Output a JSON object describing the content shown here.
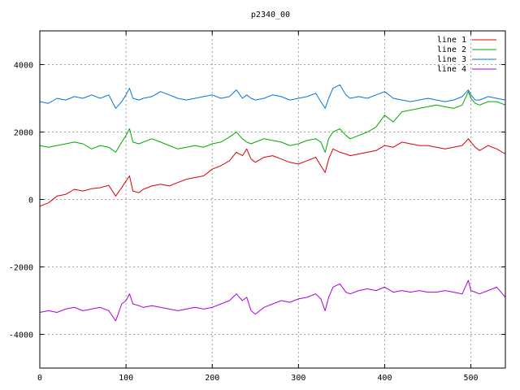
{
  "chart_data": {
    "type": "line",
    "title": "p2340_00",
    "xlabel": "",
    "ylabel": "",
    "xlim": [
      0,
      540
    ],
    "ylim": [
      -5000,
      5000
    ],
    "xticks": [
      0,
      100,
      200,
      300,
      400,
      500
    ],
    "yticks": [
      -4000,
      -2000,
      0,
      2000,
      4000
    ],
    "grid": true,
    "legend_position": "top-right",
    "series": [
      {
        "name": "line 1",
        "color": "#dd0000",
        "x": [
          0,
          10,
          20,
          30,
          40,
          50,
          60,
          70,
          80,
          88,
          95,
          100,
          104,
          108,
          115,
          120,
          130,
          140,
          150,
          160,
          170,
          180,
          190,
          200,
          210,
          220,
          228,
          235,
          240,
          245,
          250,
          260,
          270,
          280,
          290,
          300,
          310,
          320,
          326,
          331,
          335,
          340,
          348,
          355,
          360,
          370,
          380,
          390,
          400,
          410,
          420,
          430,
          440,
          450,
          460,
          470,
          480,
          490,
          497,
          500,
          505,
          510,
          520,
          530,
          540
        ],
        "y": [
          -200,
          -100,
          100,
          150,
          300,
          250,
          320,
          350,
          420,
          100,
          350,
          550,
          700,
          250,
          200,
          300,
          400,
          450,
          400,
          500,
          600,
          650,
          700,
          900,
          1000,
          1150,
          1400,
          1300,
          1500,
          1200,
          1100,
          1250,
          1300,
          1200,
          1100,
          1050,
          1150,
          1250,
          1000,
          800,
          1200,
          1500,
          1400,
          1350,
          1300,
          1350,
          1400,
          1450,
          1600,
          1550,
          1700,
          1650,
          1600,
          1600,
          1550,
          1500,
          1550,
          1600,
          1800,
          1700,
          1550,
          1450,
          1600,
          1500,
          1350
        ]
      },
      {
        "name": "line 2",
        "color": "#00aa00",
        "x": [
          0,
          10,
          20,
          30,
          40,
          50,
          60,
          70,
          80,
          88,
          95,
          100,
          104,
          108,
          115,
          120,
          130,
          140,
          150,
          160,
          170,
          180,
          190,
          200,
          210,
          220,
          228,
          235,
          240,
          245,
          250,
          260,
          270,
          280,
          290,
          300,
          310,
          320,
          326,
          331,
          335,
          340,
          348,
          355,
          360,
          370,
          380,
          390,
          400,
          410,
          420,
          430,
          440,
          450,
          460,
          470,
          480,
          490,
          497,
          500,
          505,
          510,
          520,
          530,
          540
        ],
        "y": [
          1600,
          1550,
          1600,
          1650,
          1700,
          1650,
          1500,
          1600,
          1550,
          1400,
          1700,
          1900,
          2100,
          1700,
          1650,
          1700,
          1800,
          1700,
          1600,
          1500,
          1550,
          1600,
          1550,
          1650,
          1700,
          1850,
          2000,
          1800,
          1700,
          1650,
          1700,
          1800,
          1750,
          1700,
          1600,
          1650,
          1750,
          1800,
          1700,
          1400,
          1800,
          2000,
          2100,
          1900,
          1800,
          1900,
          2000,
          2150,
          2500,
          2300,
          2600,
          2650,
          2700,
          2750,
          2800,
          2750,
          2700,
          2800,
          3200,
          3000,
          2850,
          2800,
          2900,
          2900,
          2800
        ]
      },
      {
        "name": "line 3",
        "color": "#0077dd",
        "x": [
          0,
          10,
          20,
          30,
          40,
          50,
          60,
          70,
          80,
          88,
          95,
          100,
          104,
          108,
          115,
          120,
          130,
          140,
          150,
          160,
          170,
          180,
          190,
          200,
          210,
          220,
          228,
          235,
          240,
          245,
          250,
          260,
          270,
          280,
          290,
          300,
          310,
          320,
          326,
          331,
          335,
          340,
          348,
          355,
          360,
          370,
          380,
          390,
          400,
          410,
          420,
          430,
          440,
          450,
          460,
          470,
          480,
          490,
          497,
          500,
          505,
          510,
          520,
          530,
          540
        ],
        "y": [
          2900,
          2850,
          3000,
          2950,
          3050,
          3000,
          3100,
          3000,
          3100,
          2700,
          2900,
          3100,
          3300,
          3000,
          2950,
          3000,
          3050,
          3200,
          3100,
          3000,
          2950,
          3000,
          3050,
          3100,
          3000,
          3050,
          3250,
          3000,
          3100,
          3000,
          2950,
          3000,
          3100,
          3050,
          2950,
          3000,
          3050,
          3150,
          2900,
          2700,
          3000,
          3300,
          3400,
          3100,
          3000,
          3050,
          3000,
          3100,
          3200,
          3000,
          2950,
          2900,
          2950,
          3000,
          2950,
          2900,
          2950,
          3050,
          3250,
          3100,
          2950,
          2950,
          3050,
          3000,
          2950
        ]
      },
      {
        "name": "line 4",
        "color": "#aa00dd",
        "x": [
          0,
          10,
          20,
          30,
          40,
          50,
          60,
          70,
          80,
          88,
          95,
          100,
          104,
          108,
          115,
          120,
          130,
          140,
          150,
          160,
          170,
          180,
          190,
          200,
          210,
          220,
          228,
          235,
          240,
          245,
          250,
          260,
          270,
          280,
          290,
          300,
          310,
          320,
          326,
          331,
          335,
          340,
          348,
          355,
          360,
          370,
          380,
          390,
          400,
          410,
          420,
          430,
          440,
          450,
          460,
          470,
          480,
          490,
          497,
          500,
          505,
          510,
          520,
          530,
          540
        ],
        "y": [
          -3350,
          -3300,
          -3350,
          -3250,
          -3200,
          -3300,
          -3250,
          -3200,
          -3300,
          -3600,
          -3100,
          -3000,
          -2800,
          -3100,
          -3150,
          -3200,
          -3150,
          -3200,
          -3250,
          -3300,
          -3250,
          -3200,
          -3250,
          -3200,
          -3100,
          -3000,
          -2800,
          -3000,
          -2900,
          -3300,
          -3400,
          -3200,
          -3100,
          -3000,
          -3050,
          -2950,
          -2900,
          -2800,
          -2950,
          -3300,
          -2900,
          -2600,
          -2500,
          -2750,
          -2800,
          -2700,
          -2650,
          -2700,
          -2600,
          -2750,
          -2700,
          -2750,
          -2700,
          -2750,
          -2750,
          -2700,
          -2750,
          -2800,
          -2400,
          -2700,
          -2750,
          -2800,
          -2700,
          -2600,
          -2900
        ]
      }
    ]
  }
}
